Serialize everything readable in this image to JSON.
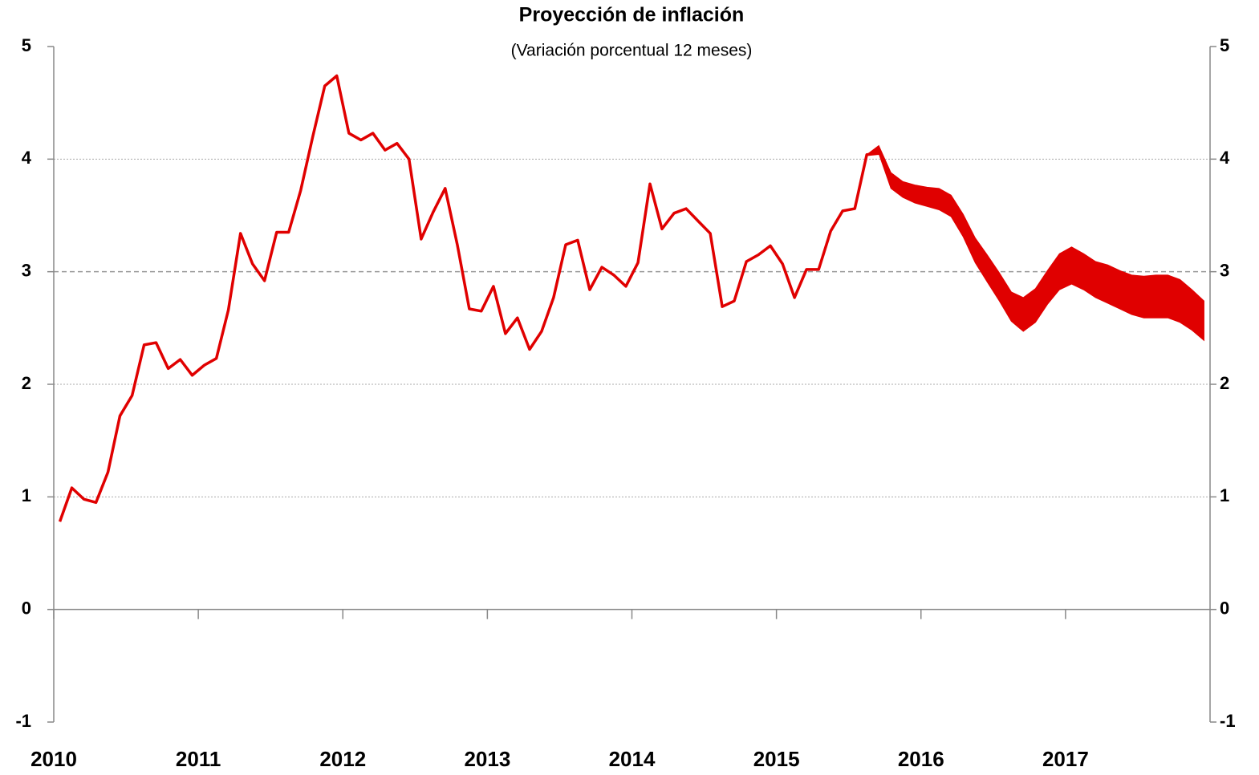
{
  "chart_data": {
    "type": "line",
    "title": "Proyección de inflación",
    "subtitle": "(Variación porcentual 12 meses)",
    "x": [
      2010.042,
      2010.125,
      2010.208,
      2010.292,
      2010.375,
      2010.458,
      2010.542,
      2010.625,
      2010.708,
      2010.792,
      2010.875,
      2010.958,
      2011.042,
      2011.125,
      2011.208,
      2011.292,
      2011.375,
      2011.458,
      2011.542,
      2011.625,
      2011.708,
      2011.792,
      2011.875,
      2011.958,
      2012.042,
      2012.125,
      2012.208,
      2012.292,
      2012.375,
      2012.458,
      2012.542,
      2012.625,
      2012.708,
      2012.792,
      2012.875,
      2012.958,
      2013.042,
      2013.125,
      2013.208,
      2013.292,
      2013.375,
      2013.458,
      2013.542,
      2013.625,
      2013.708,
      2013.792,
      2013.875,
      2013.958,
      2014.042,
      2014.125,
      2014.208,
      2014.292,
      2014.375,
      2014.458,
      2014.542,
      2014.625,
      2014.708,
      2014.792,
      2014.875,
      2014.958,
      2015.042,
      2015.125,
      2015.208,
      2015.292,
      2015.375,
      2015.458,
      2015.542,
      2015.625,
      2015.708,
      2015.792,
      2015.875,
      2015.958,
      2016.042,
      2016.125,
      2016.208,
      2016.292,
      2016.375,
      2016.458,
      2016.542,
      2016.625,
      2016.708,
      2016.792,
      2016.875,
      2016.958,
      2017.042,
      2017.125,
      2017.208,
      2017.292,
      2017.375,
      2017.458,
      2017.542,
      2017.625,
      2017.708,
      2017.792,
      2017.875,
      2017.958
    ],
    "series": [
      {
        "color": "#e00000",
        "values": [
          0.78,
          1.08,
          0.98,
          0.95,
          1.22,
          1.72,
          1.9,
          2.35,
          2.37,
          2.14,
          2.22,
          2.08,
          2.17,
          2.23,
          2.66,
          3.34,
          3.07,
          2.92,
          3.35,
          3.35,
          3.72,
          4.2,
          4.65,
          4.74,
          4.23,
          4.17,
          4.23,
          4.08,
          4.14,
          4.0,
          3.29,
          3.53,
          3.74,
          3.24,
          2.67,
          2.65,
          2.87,
          2.45,
          2.59,
          2.31,
          2.47,
          2.77,
          3.24,
          3.28,
          2.84,
          3.04,
          2.97,
          2.87,
          3.08,
          3.78,
          3.38,
          3.52,
          3.56,
          3.45,
          3.34,
          2.69,
          2.74,
          3.09,
          3.15,
          3.23,
          3.07,
          2.77,
          3.02,
          3.02,
          3.36,
          3.54,
          3.56,
          4.04,
          4.05,
          null,
          null,
          null,
          null,
          null,
          null,
          null,
          null,
          null,
          null,
          null,
          null,
          null,
          null,
          null,
          null,
          null,
          null,
          null,
          null,
          null,
          null,
          null,
          null,
          null,
          null,
          null
        ]
      }
    ],
    "band": {
      "color": "#e00000",
      "upper": [
        null,
        null,
        null,
        null,
        null,
        null,
        null,
        null,
        null,
        null,
        null,
        null,
        null,
        null,
        null,
        null,
        null,
        null,
        null,
        null,
        null,
        null,
        null,
        null,
        null,
        null,
        null,
        null,
        null,
        null,
        null,
        null,
        null,
        null,
        null,
        null,
        null,
        null,
        null,
        null,
        null,
        null,
        null,
        null,
        null,
        null,
        null,
        null,
        null,
        null,
        null,
        null,
        null,
        null,
        null,
        null,
        null,
        null,
        null,
        null,
        null,
        null,
        null,
        null,
        null,
        null,
        null,
        4.04,
        4.12,
        3.88,
        3.8,
        3.77,
        3.75,
        3.74,
        3.68,
        3.51,
        3.3,
        3.15,
        2.99,
        2.82,
        2.77,
        2.85,
        3.01,
        3.16,
        3.22,
        3.16,
        3.09,
        3.06,
        3.01,
        2.97,
        2.96,
        2.97,
        2.97,
        2.93,
        2.84,
        2.74
      ],
      "lower": [
        null,
        null,
        null,
        null,
        null,
        null,
        null,
        null,
        null,
        null,
        null,
        null,
        null,
        null,
        null,
        null,
        null,
        null,
        null,
        null,
        null,
        null,
        null,
        null,
        null,
        null,
        null,
        null,
        null,
        null,
        null,
        null,
        null,
        null,
        null,
        null,
        null,
        null,
        null,
        null,
        null,
        null,
        null,
        null,
        null,
        null,
        null,
        null,
        null,
        null,
        null,
        null,
        null,
        null,
        null,
        null,
        null,
        null,
        null,
        null,
        null,
        null,
        null,
        null,
        null,
        null,
        null,
        4.04,
        4.05,
        3.74,
        3.66,
        3.61,
        3.58,
        3.55,
        3.49,
        3.31,
        3.08,
        2.91,
        2.74,
        2.56,
        2.47,
        2.55,
        2.71,
        2.84,
        2.89,
        2.84,
        2.77,
        2.72,
        2.67,
        2.62,
        2.59,
        2.59,
        2.59,
        2.55,
        2.48,
        2.39
      ]
    },
    "xlim": [
      2010,
      2018
    ],
    "xticks": [
      2010,
      2011,
      2012,
      2013,
      2014,
      2015,
      2016,
      2017
    ],
    "ylim": [
      -1,
      5
    ],
    "yticks": [
      -1,
      0,
      1,
      2,
      3,
      4,
      5
    ],
    "target": 3,
    "grid": true
  }
}
